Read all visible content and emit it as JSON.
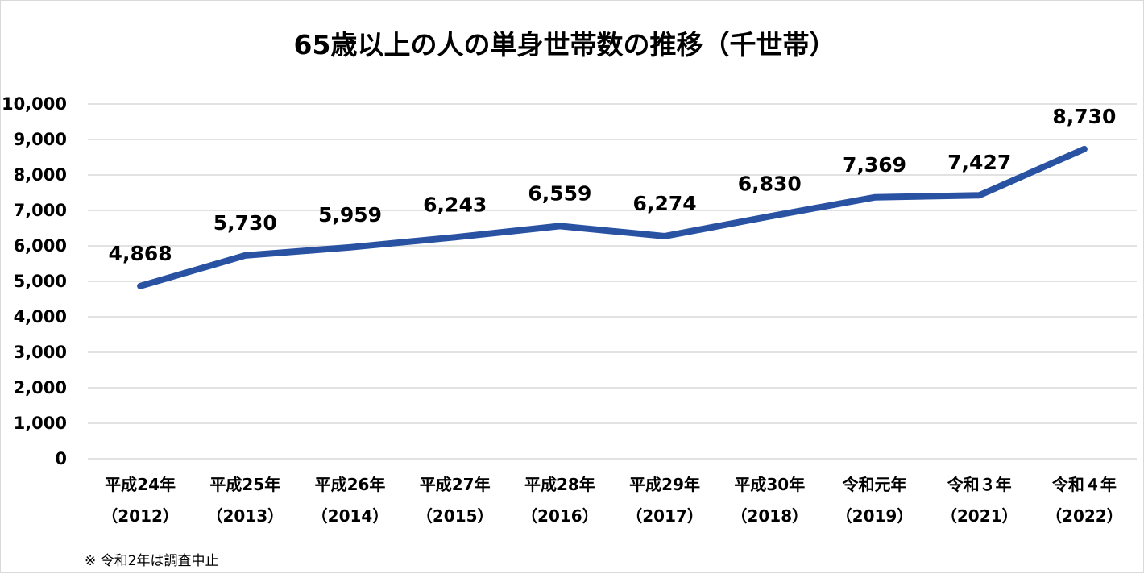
{
  "chart_data": {
    "type": "line",
    "title": "65歳以上の人の単身世帯数の推移（千世帯）",
    "categories": [
      [
        "平成24年",
        "（2012）"
      ],
      [
        "平成25年",
        "（2013）"
      ],
      [
        "平成26年",
        "（2014）"
      ],
      [
        "平成27年",
        "（2015）"
      ],
      [
        "平成28年",
        "（2016）"
      ],
      [
        "平成29年",
        "（2017）"
      ],
      [
        "平成30年",
        "（2018）"
      ],
      [
        "令和元年",
        "（2019）"
      ],
      [
        "令和３年",
        "（2021）"
      ],
      [
        "令和４年",
        "（2022）"
      ]
    ],
    "values": [
      4868,
      5730,
      5959,
      6243,
      6559,
      6274,
      6830,
      7369,
      7427,
      8730
    ],
    "data_labels": [
      "4,868",
      "5,730",
      "5,959",
      "6,243",
      "6,559",
      "6,274",
      "6,830",
      "7,369",
      "7,427",
      "8,730"
    ],
    "ylim": [
      0,
      10000
    ],
    "yticks": [
      0,
      1000,
      2000,
      3000,
      4000,
      5000,
      6000,
      7000,
      8000,
      9000,
      10000
    ],
    "ytick_labels": [
      "0",
      "1,000",
      "2,000",
      "3,000",
      "4,000",
      "5,000",
      "6,000",
      "7,000",
      "8,000",
      "9,000",
      "10,000"
    ],
    "grid": true,
    "line_color": "#2952A3",
    "grid_color": "#d9d9d9"
  },
  "footnote": "※ 令和2年は調査中止"
}
